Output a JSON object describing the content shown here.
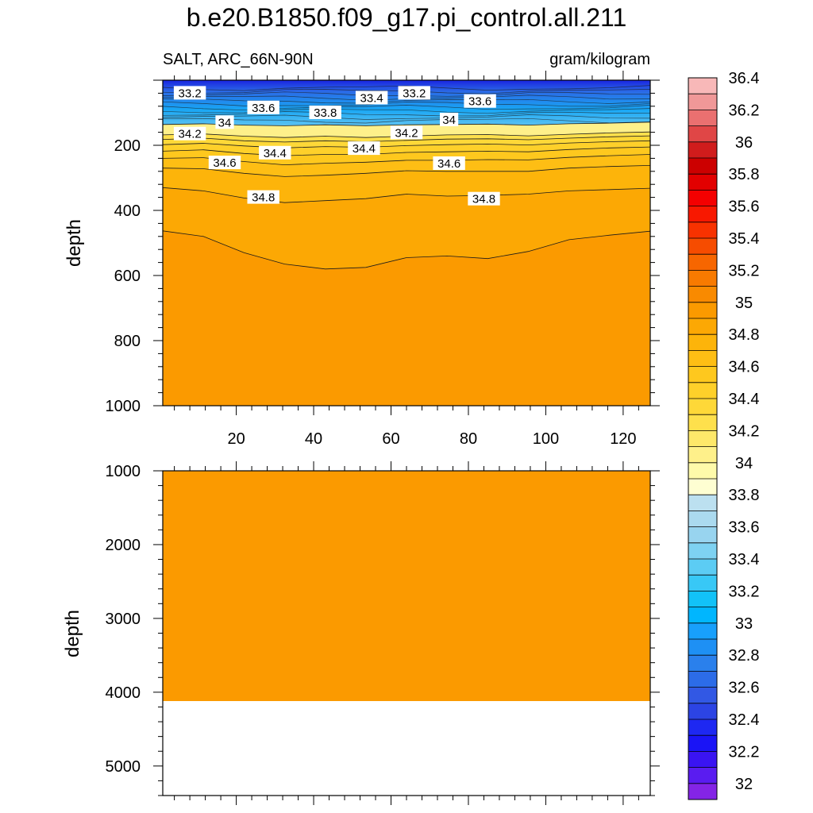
{
  "figure_title": "b.e20.B1850.f09_g17.pi_control.all.211",
  "colorbar": {
    "ticks": [
      "32",
      "32.2",
      "32.4",
      "32.6",
      "32.8",
      "33",
      "33.2",
      "33.4",
      "33.6",
      "33.8",
      "34",
      "34.2",
      "34.4",
      "34.6",
      "34.8",
      "35",
      "35.2",
      "35.4",
      "35.6",
      "35.8",
      "36",
      "36.2",
      "36.4"
    ],
    "colors": [
      "#8424e6",
      "#5a1cf0",
      "#3a14f2",
      "#1a14f6",
      "#1e28f2",
      "#2c44e4",
      "#3258e4",
      "#2c6ce8",
      "#2a80ec",
      "#1e90f4",
      "#18a0fc",
      "#00b6fe",
      "#12c2f8",
      "#38c8f6",
      "#5cccf4",
      "#7ed2f2",
      "#98d4ef",
      "#abdaef",
      "#bce0f0",
      "#fefed2",
      "#fefaaa",
      "#fef08a",
      "#fee86a",
      "#fee04c",
      "#fed838",
      "#fed02a",
      "#fec81e",
      "#febe14",
      "#fdb40a",
      "#fca804",
      "#fb9a00",
      "#f98a00",
      "#f87a00",
      "#f76600",
      "#f64c00",
      "#f83200",
      "#f81800",
      "#f40000",
      "#e20000",
      "#cc0000",
      "#d01c1c",
      "#e04646",
      "#ea7070",
      "#f09898",
      "#f8b8b8"
    ]
  },
  "chart_data": [
    {
      "type": "contour",
      "panel": "upper",
      "left_label": "SALT, ARC_66N-90N",
      "right_label": "gram/kilogram",
      "ylabel": "depth",
      "xlabel": "",
      "xlim": [
        1,
        127
      ],
      "ylim": [
        1000,
        0
      ],
      "x_ticks": [
        20,
        40,
        60,
        80,
        100,
        120
      ],
      "y_ticks": [
        200,
        400,
        600,
        800,
        1000
      ],
      "contour_lines": [
        {
          "level": 34.0,
          "depths": [
            136,
            134,
            138,
            140,
            137,
            140,
            137,
            136,
            135,
            138,
            134,
            132,
            129
          ]
        },
        {
          "level": 34.2,
          "depths": [
            168,
            165,
            172,
            176,
            172,
            176,
            172,
            168,
            167,
            171,
            166,
            162,
            159
          ]
        },
        {
          "level": 34.3,
          "depths": [
            182,
            178,
            186,
            190,
            186,
            189,
            185,
            181,
            180,
            183,
            178,
            174,
            171
          ]
        },
        {
          "level": 34.4,
          "depths": [
            198,
            194,
            202,
            208,
            204,
            206,
            201,
            198,
            196,
            199,
            193,
            189,
            186
          ]
        },
        {
          "level": 34.5,
          "depths": [
            218,
            214,
            225,
            232,
            228,
            228,
            222,
            220,
            218,
            220,
            213,
            208,
            205
          ]
        },
        {
          "level": 34.6,
          "depths": [
            240,
            238,
            250,
            260,
            255,
            252,
            246,
            246,
            244,
            245,
            237,
            232,
            228
          ]
        },
        {
          "level": 34.7,
          "depths": [
            270,
            272,
            286,
            296,
            292,
            286,
            278,
            280,
            280,
            280,
            270,
            265,
            262
          ]
        },
        {
          "level": 34.8,
          "depths": [
            330,
            340,
            362,
            376,
            370,
            364,
            350,
            356,
            354,
            350,
            340,
            336,
            332
          ]
        },
        {
          "level": 34.9,
          "depths": [
            463,
            480,
            530,
            565,
            580,
            575,
            545,
            540,
            548,
            526,
            490,
            476,
            464
          ]
        }
      ],
      "contour_labels": [
        {
          "text": "33.2",
          "x": 8,
          "depth": 40
        },
        {
          "text": "33.6",
          "x": 27,
          "depth": 85
        },
        {
          "text": "33.8",
          "x": 43,
          "depth": 100
        },
        {
          "text": "33.4",
          "x": 55,
          "depth": 55
        },
        {
          "text": "33.2",
          "x": 66,
          "depth": 40
        },
        {
          "text": "33.6",
          "x": 83,
          "depth": 65
        },
        {
          "text": "34",
          "x": 17,
          "depth": 130
        },
        {
          "text": "34",
          "x": 75,
          "depth": 122
        },
        {
          "text": "34.2",
          "x": 8,
          "depth": 165
        },
        {
          "text": "34.2",
          "x": 64,
          "depth": 162
        },
        {
          "text": "34.4",
          "x": 30,
          "depth": 224
        },
        {
          "text": "34.4",
          "x": 53,
          "depth": 210
        },
        {
          "text": "34.6",
          "x": 17,
          "depth": 254
        },
        {
          "text": "34.6",
          "x": 75,
          "depth": 256
        },
        {
          "text": "34.8",
          "x": 27,
          "depth": 360
        },
        {
          "text": "34.8",
          "x": 84,
          "depth": 365
        }
      ]
    },
    {
      "type": "contour",
      "panel": "lower",
      "ylabel": "depth",
      "xlim": [
        1,
        127
      ],
      "ylim": [
        5400,
        1000
      ],
      "y_ticks": [
        1000,
        2000,
        3000,
        4000,
        5000
      ],
      "fill_level": 34.95,
      "bottom_depth": 4120
    }
  ]
}
